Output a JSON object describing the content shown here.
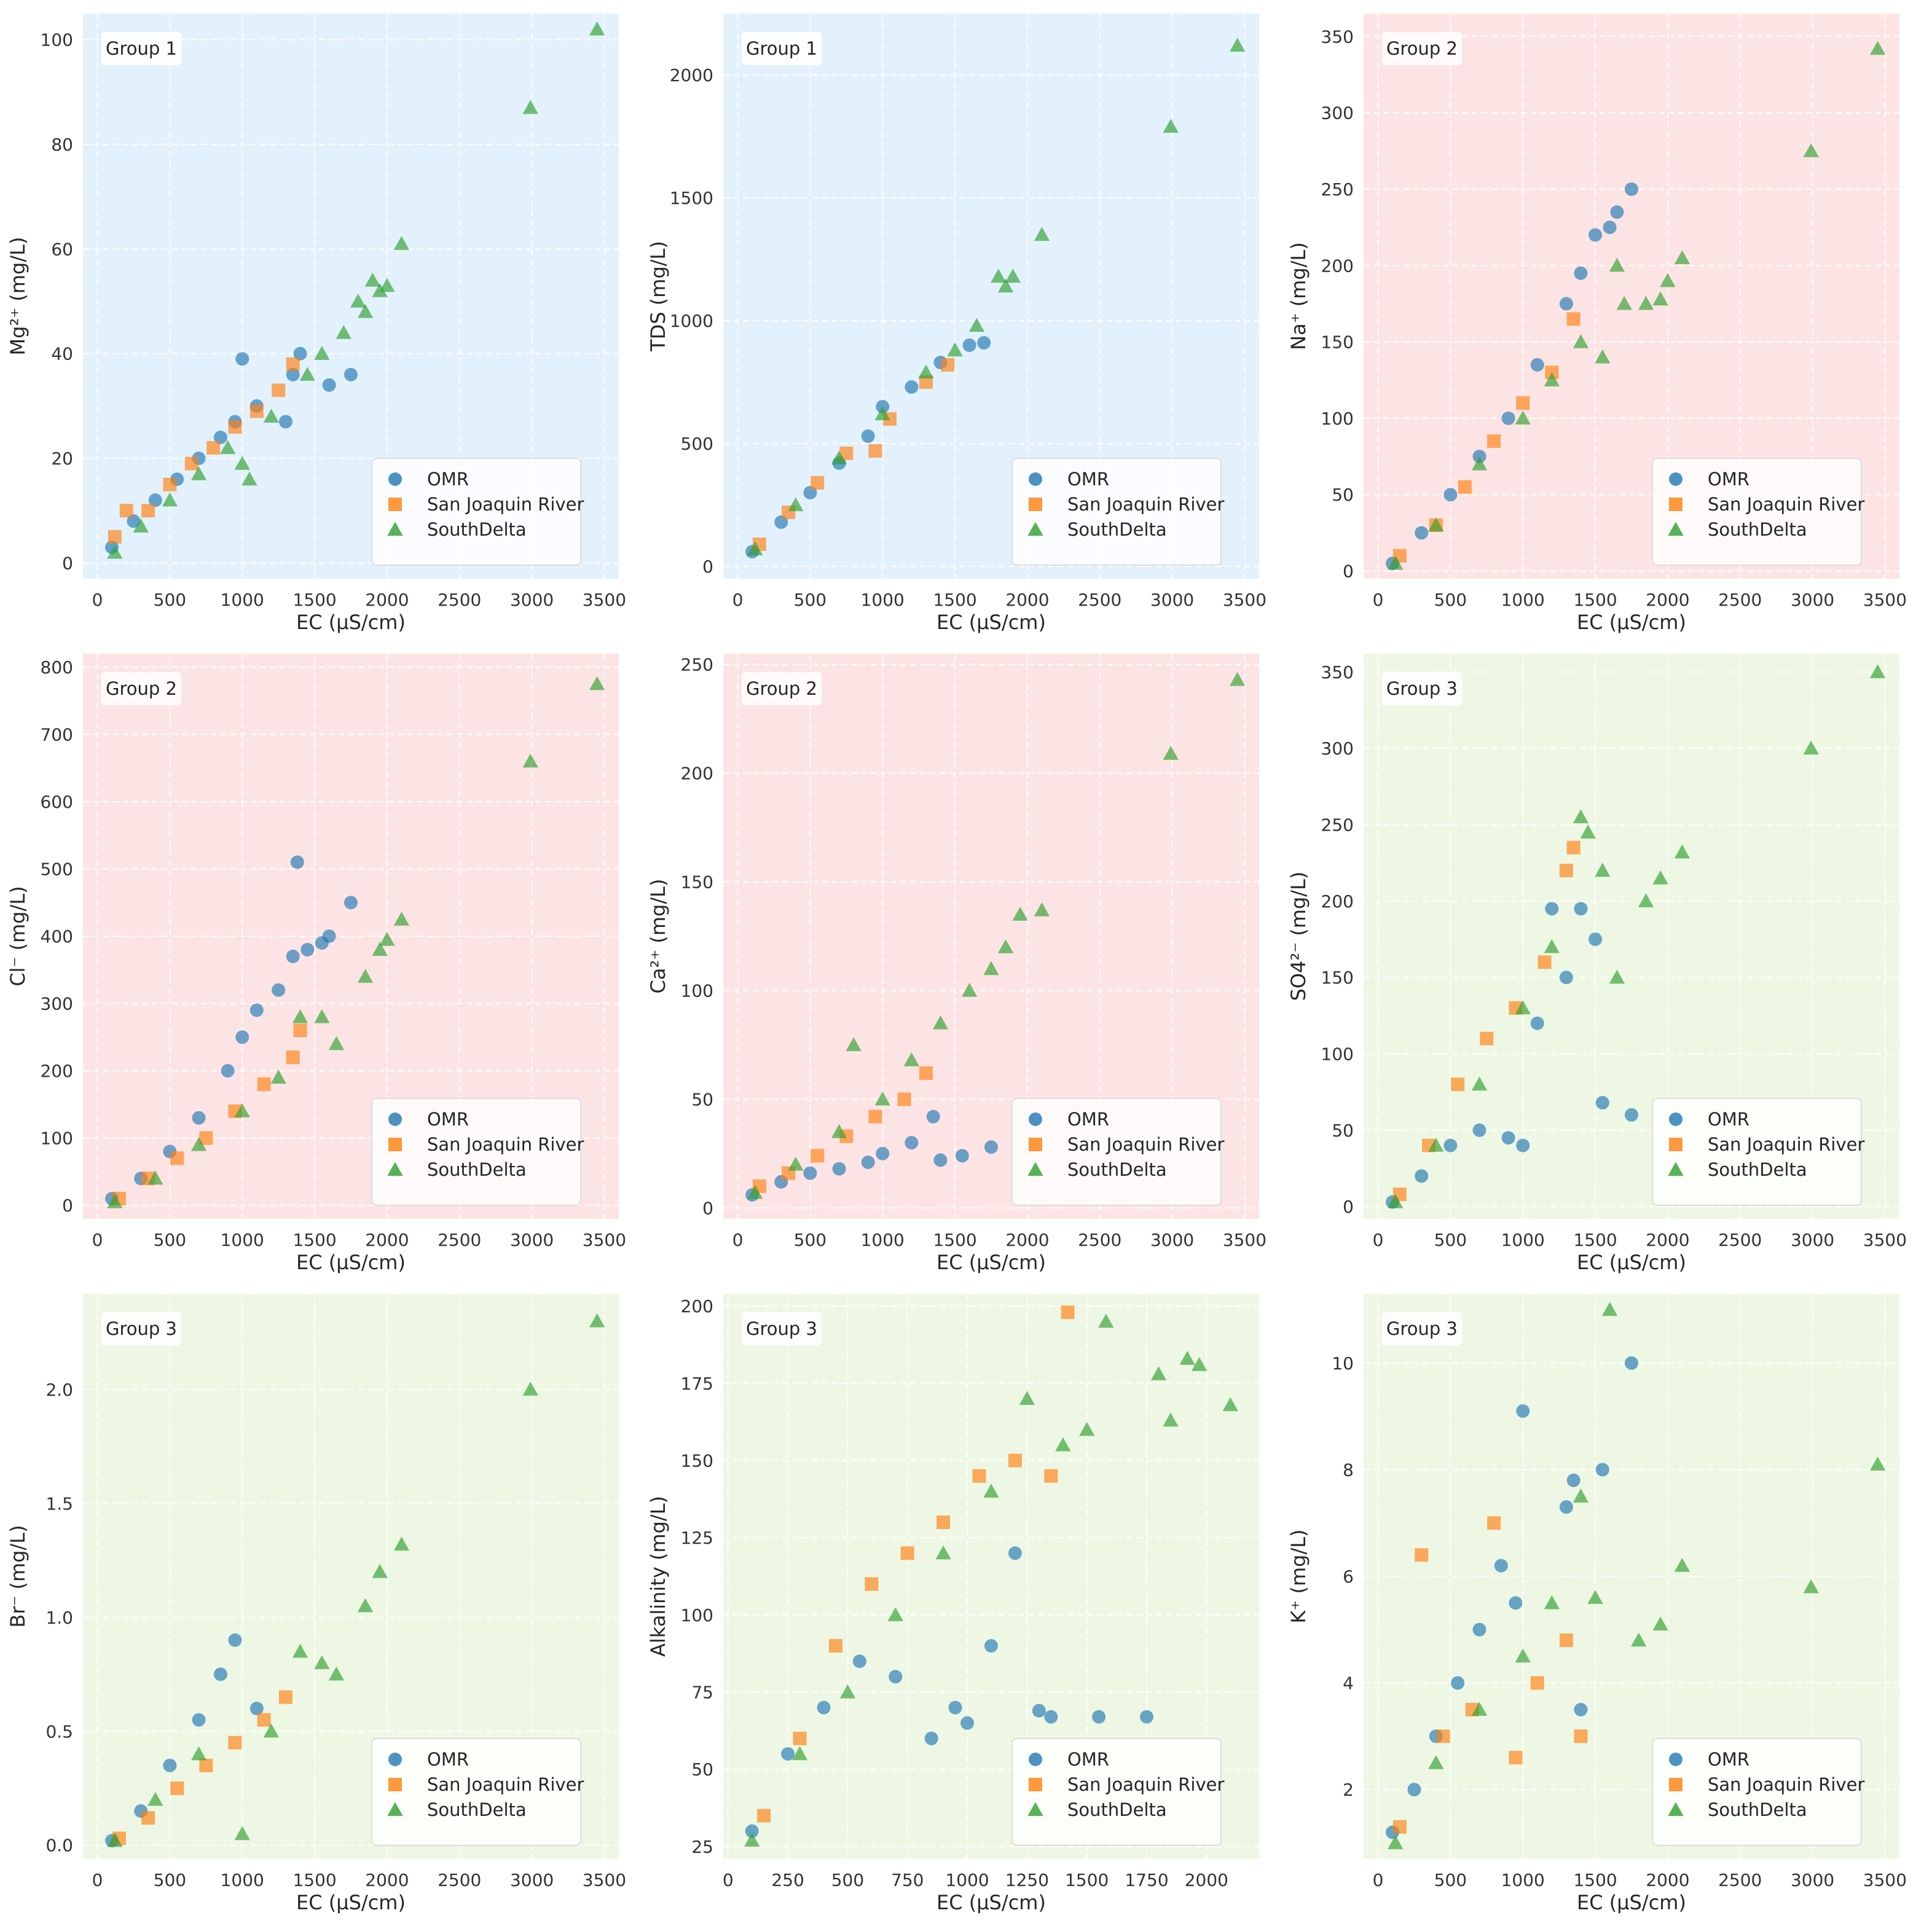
{
  "colors": {
    "omr": "#1f77b4",
    "sjr": "#ff7f0e",
    "southdelta": "#2ca02c",
    "group1_bg": "#e3f1fd",
    "group2_bg": "#fde4e4",
    "group3_bg": "#eef7e4",
    "grid": "#ffffff"
  },
  "legend": {
    "items": [
      {
        "key": "omr",
        "label": "OMR",
        "marker": "circle"
      },
      {
        "key": "sjr",
        "label": "San Joaquin River",
        "marker": "square"
      },
      {
        "key": "southdelta",
        "label": "SouthDelta",
        "marker": "triangle"
      }
    ]
  },
  "chart_data": [
    {
      "type": "scatter",
      "group": "Group 1",
      "group_bg": "group1",
      "xlabel": "EC (µS/cm)",
      "ylabel": "Mg²⁺ (mg/L)",
      "xlim": [
        -100,
        3600
      ],
      "ylim": [
        -3,
        105
      ],
      "xticks": [
        0,
        500,
        1000,
        1500,
        2000,
        2500,
        3000,
        3500
      ],
      "yticks": [
        0,
        20,
        40,
        60,
        80,
        100
      ],
      "series": [
        {
          "name": "OMR",
          "x": [
            100,
            250,
            400,
            550,
            700,
            850,
            950,
            1000,
            1100,
            1300,
            1350,
            1400,
            1600,
            1750
          ],
          "y": [
            3,
            8,
            12,
            16,
            20,
            24,
            27,
            39,
            30,
            27,
            36,
            40,
            34,
            36
          ]
        },
        {
          "name": "San Joaquin River",
          "x": [
            120,
            200,
            350,
            500,
            650,
            800,
            950,
            1100,
            1250,
            1350
          ],
          "y": [
            5,
            10,
            10,
            15,
            19,
            22,
            26,
            29,
            33,
            38
          ]
        },
        {
          "name": "SouthDelta",
          "x": [
            120,
            300,
            500,
            700,
            900,
            1000,
            1050,
            1200,
            1450,
            1550,
            1700,
            1800,
            1850,
            1900,
            1950,
            2000,
            2100,
            2990,
            3450
          ],
          "y": [
            2,
            7,
            12,
            17,
            22,
            19,
            16,
            28,
            36,
            40,
            44,
            50,
            48,
            54,
            52,
            53,
            61,
            87,
            102
          ]
        }
      ]
    },
    {
      "type": "scatter",
      "group": "Group 1",
      "group_bg": "group1",
      "xlabel": "EC (µS/cm)",
      "ylabel": "TDS (mg/L)",
      "xlim": [
        -100,
        3600
      ],
      "ylim": [
        -50,
        2250
      ],
      "xticks": [
        0,
        500,
        1000,
        1500,
        2000,
        2500,
        3000,
        3500
      ],
      "yticks": [
        0,
        500,
        1000,
        1500,
        2000
      ],
      "series": [
        {
          "name": "OMR",
          "x": [
            100,
            300,
            500,
            700,
            900,
            1000,
            1200,
            1400,
            1600,
            1700
          ],
          "y": [
            60,
            180,
            300,
            420,
            530,
            650,
            730,
            830,
            900,
            910
          ]
        },
        {
          "name": "San Joaquin River",
          "x": [
            150,
            350,
            550,
            750,
            950,
            1050,
            1300,
            1450
          ],
          "y": [
            90,
            220,
            340,
            460,
            470,
            600,
            750,
            820
          ]
        },
        {
          "name": "SouthDelta",
          "x": [
            120,
            400,
            700,
            1000,
            1300,
            1500,
            1650,
            1800,
            1850,
            1900,
            2100,
            2990,
            3450
          ],
          "y": [
            70,
            250,
            440,
            620,
            790,
            880,
            980,
            1180,
            1140,
            1180,
            1350,
            1790,
            2120
          ]
        }
      ]
    },
    {
      "type": "scatter",
      "group": "Group 2",
      "group_bg": "group2",
      "xlabel": "EC (µS/cm)",
      "ylabel": "Na⁺ (mg/L)",
      "xlim": [
        -100,
        3600
      ],
      "ylim": [
        -5,
        365
      ],
      "xticks": [
        0,
        500,
        1000,
        1500,
        2000,
        2500,
        3000,
        3500
      ],
      "yticks": [
        0,
        50,
        100,
        150,
        200,
        250,
        300,
        350
      ],
      "series": [
        {
          "name": "OMR",
          "x": [
            100,
            300,
            500,
            700,
            900,
            1100,
            1300,
            1400,
            1500,
            1600,
            1650,
            1750
          ],
          "y": [
            5,
            25,
            50,
            75,
            100,
            135,
            175,
            195,
            220,
            225,
            235,
            250
          ]
        },
        {
          "name": "San Joaquin River",
          "x": [
            150,
            400,
            600,
            800,
            1000,
            1200,
            1350
          ],
          "y": [
            10,
            30,
            55,
            85,
            110,
            130,
            165
          ]
        },
        {
          "name": "SouthDelta",
          "x": [
            120,
            400,
            700,
            1000,
            1200,
            1400,
            1550,
            1650,
            1700,
            1850,
            1950,
            2000,
            2100,
            2990,
            3450
          ],
          "y": [
            5,
            30,
            70,
            100,
            125,
            150,
            140,
            200,
            175,
            175,
            178,
            190,
            205,
            275,
            342
          ]
        }
      ]
    },
    {
      "type": "scatter",
      "group": "Group 2",
      "group_bg": "group2",
      "xlabel": "EC (µS/cm)",
      "ylabel": "Cl⁻ (mg/L)",
      "xlim": [
        -100,
        3600
      ],
      "ylim": [
        -20,
        820
      ],
      "xticks": [
        0,
        500,
        1000,
        1500,
        2000,
        2500,
        3000,
        3500
      ],
      "yticks": [
        0,
        100,
        200,
        300,
        400,
        500,
        600,
        700,
        800
      ],
      "series": [
        {
          "name": "OMR",
          "x": [
            100,
            300,
            500,
            700,
            900,
            1000,
            1100,
            1250,
            1350,
            1380,
            1450,
            1550,
            1600,
            1750
          ],
          "y": [
            10,
            40,
            80,
            130,
            200,
            250,
            290,
            320,
            370,
            510,
            380,
            390,
            400,
            450
          ]
        },
        {
          "name": "San Joaquin River",
          "x": [
            150,
            350,
            550,
            750,
            950,
            1150,
            1350,
            1400
          ],
          "y": [
            10,
            40,
            70,
            100,
            140,
            180,
            220,
            260
          ]
        },
        {
          "name": "SouthDelta",
          "x": [
            120,
            400,
            700,
            1000,
            1250,
            1400,
            1550,
            1650,
            1850,
            1950,
            2000,
            2100,
            2990,
            3450
          ],
          "y": [
            5,
            40,
            90,
            140,
            190,
            280,
            280,
            240,
            340,
            380,
            395,
            425,
            660,
            775
          ]
        }
      ]
    },
    {
      "type": "scatter",
      "group": "Group 2",
      "group_bg": "group2",
      "xlabel": "EC (µS/cm)",
      "ylabel": "Ca²⁺ (mg/L)",
      "xlim": [
        -100,
        3600
      ],
      "ylim": [
        -5,
        255
      ],
      "xticks": [
        0,
        500,
        1000,
        1500,
        2000,
        2500,
        3000,
        3500
      ],
      "yticks": [
        0,
        50,
        100,
        150,
        200,
        250
      ],
      "series": [
        {
          "name": "OMR",
          "x": [
            100,
            300,
            500,
            700,
            900,
            1000,
            1200,
            1350,
            1400,
            1550,
            1750
          ],
          "y": [
            6,
            12,
            16,
            18,
            21,
            25,
            30,
            42,
            22,
            24,
            28
          ]
        },
        {
          "name": "San Joaquin River",
          "x": [
            150,
            350,
            550,
            750,
            950,
            1150,
            1300
          ],
          "y": [
            10,
            16,
            24,
            33,
            42,
            50,
            62
          ]
        },
        {
          "name": "SouthDelta",
          "x": [
            120,
            400,
            700,
            800,
            1000,
            1200,
            1400,
            1600,
            1750,
            1850,
            1950,
            2100,
            2990,
            3450
          ],
          "y": [
            7,
            20,
            35,
            75,
            50,
            68,
            85,
            100,
            110,
            120,
            135,
            137,
            209,
            243
          ]
        }
      ]
    },
    {
      "type": "scatter",
      "group": "Group 3",
      "group_bg": "group3",
      "xlabel": "EC (µS/cm)",
      "ylabel": "SO4²⁻ (mg/L)",
      "xlim": [
        -100,
        3600
      ],
      "ylim": [
        -8,
        362
      ],
      "xticks": [
        0,
        500,
        1000,
        1500,
        2000,
        2500,
        3000,
        3500
      ],
      "yticks": [
        0,
        50,
        100,
        150,
        200,
        250,
        300,
        350
      ],
      "series": [
        {
          "name": "OMR",
          "x": [
            100,
            300,
            500,
            700,
            900,
            1000,
            1100,
            1200,
            1300,
            1400,
            1500,
            1550,
            1750
          ],
          "y": [
            3,
            20,
            40,
            50,
            45,
            40,
            120,
            195,
            150,
            195,
            175,
            68,
            60
          ]
        },
        {
          "name": "San Joaquin River",
          "x": [
            150,
            350,
            550,
            750,
            950,
            1150,
            1300,
            1350
          ],
          "y": [
            8,
            40,
            80,
            110,
            130,
            160,
            220,
            235
          ]
        },
        {
          "name": "SouthDelta",
          "x": [
            120,
            400,
            700,
            1000,
            1200,
            1400,
            1450,
            1550,
            1650,
            1850,
            1950,
            2100,
            2990,
            3450
          ],
          "y": [
            3,
            40,
            80,
            130,
            170,
            255,
            245,
            220,
            150,
            200,
            215,
            232,
            300,
            350
          ]
        }
      ]
    },
    {
      "type": "scatter",
      "group": "Group 3",
      "group_bg": "group3",
      "xlabel": "EC (µS/cm)",
      "ylabel": "Br⁻ (mg/L)",
      "xlim": [
        -100,
        3600
      ],
      "ylim": [
        -0.06,
        2.42
      ],
      "xticks": [
        0,
        500,
        1000,
        1500,
        2000,
        2500,
        3000,
        3500
      ],
      "yticks": [
        0.0,
        0.5,
        1.0,
        1.5,
        2.0
      ],
      "series": [
        {
          "name": "OMR",
          "x": [
            100,
            300,
            500,
            700,
            850,
            950,
            1100
          ],
          "y": [
            0.02,
            0.15,
            0.35,
            0.55,
            0.75,
            0.9,
            0.6
          ]
        },
        {
          "name": "San Joaquin River",
          "x": [
            150,
            350,
            550,
            750,
            950,
            1150,
            1300
          ],
          "y": [
            0.03,
            0.12,
            0.25,
            0.35,
            0.45,
            0.55,
            0.65
          ]
        },
        {
          "name": "SouthDelta",
          "x": [
            120,
            400,
            700,
            1000,
            1200,
            1400,
            1550,
            1650,
            1850,
            1950,
            2100,
            2990,
            3450
          ],
          "y": [
            0.02,
            0.2,
            0.4,
            0.05,
            0.5,
            0.85,
            0.8,
            0.75,
            1.05,
            1.2,
            1.32,
            2.0,
            2.3
          ]
        }
      ]
    },
    {
      "type": "scatter",
      "group": "Group 3",
      "group_bg": "group3",
      "xlabel": "EC (µS/cm)",
      "ylabel": "Alkalinity (mg/L)",
      "xlim": [
        -20,
        2220
      ],
      "ylim": [
        21,
        204
      ],
      "xticks": [
        0,
        250,
        500,
        750,
        1000,
        1250,
        1500,
        1750,
        2000
      ],
      "yticks": [
        25,
        50,
        75,
        100,
        125,
        150,
        175,
        200
      ],
      "series": [
        {
          "name": "OMR",
          "x": [
            100,
            250,
            400,
            550,
            700,
            850,
            950,
            1000,
            1100,
            1200,
            1300,
            1350,
            1550,
            1750
          ],
          "y": [
            30,
            55,
            70,
            85,
            80,
            60,
            70,
            65,
            90,
            120,
            69,
            67,
            67,
            67
          ]
        },
        {
          "name": "San Joaquin River",
          "x": [
            150,
            300,
            450,
            600,
            750,
            900,
            1050,
            1200,
            1350,
            1420
          ],
          "y": [
            35,
            60,
            90,
            110,
            120,
            130,
            145,
            150,
            145,
            198
          ]
        },
        {
          "name": "SouthDelta",
          "x": [
            100,
            300,
            500,
            700,
            900,
            1100,
            1250,
            1400,
            1500,
            1580,
            1800,
            1850,
            1920,
            1970,
            2100
          ],
          "y": [
            27,
            55,
            75,
            100,
            120,
            140,
            170,
            155,
            160,
            195,
            178,
            163,
            183,
            181,
            168
          ]
        }
      ]
    },
    {
      "type": "scatter",
      "group": "Group 3",
      "group_bg": "group3",
      "xlabel": "EC (µS/cm)",
      "ylabel": "K⁺ (mg/L)",
      "xlim": [
        -100,
        3600
      ],
      "ylim": [
        0.7,
        11.3
      ],
      "xticks": [
        0,
        500,
        1000,
        1500,
        2000,
        2500,
        3000,
        3500
      ],
      "yticks": [
        2,
        4,
        6,
        8,
        10
      ],
      "series": [
        {
          "name": "OMR",
          "x": [
            100,
            250,
            400,
            550,
            700,
            850,
            950,
            1000,
            1300,
            1350,
            1400,
            1550,
            1750
          ],
          "y": [
            1.2,
            2.0,
            3.0,
            4.0,
            5.0,
            6.2,
            5.5,
            9.1,
            7.3,
            7.8,
            3.5,
            8.0,
            10.0
          ]
        },
        {
          "name": "San Joaquin River",
          "x": [
            150,
            300,
            450,
            650,
            800,
            950,
            1100,
            1300,
            1400
          ],
          "y": [
            1.3,
            6.4,
            3.0,
            3.5,
            7.0,
            2.6,
            4.0,
            4.8,
            3.0
          ]
        },
        {
          "name": "SouthDelta",
          "x": [
            120,
            400,
            700,
            1000,
            1200,
            1400,
            1500,
            1600,
            1800,
            1950,
            2100,
            2990,
            3450
          ],
          "y": [
            1.0,
            2.5,
            3.5,
            4.5,
            5.5,
            7.5,
            5.6,
            11.0,
            4.8,
            5.1,
            6.2,
            5.8,
            8.1
          ]
        }
      ]
    }
  ]
}
